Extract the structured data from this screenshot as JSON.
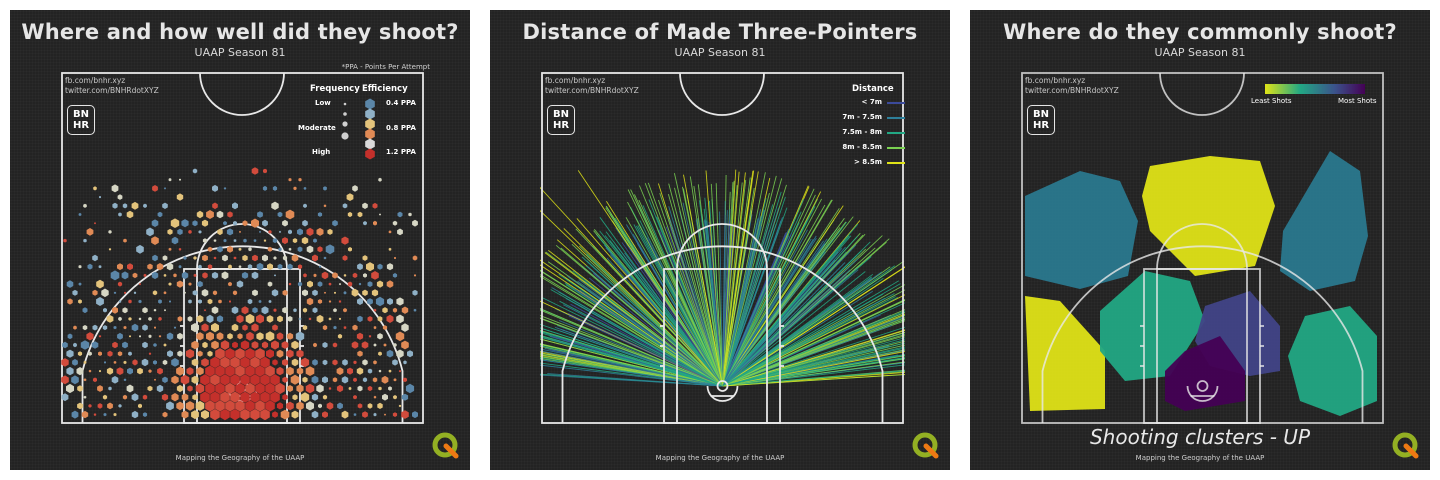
{
  "panels": [
    {
      "title": "Where and how well did they shoot?",
      "subtitle": "UAAP Season 81",
      "note": "*PPA - Points Per Attempt",
      "credit_fb": "fb.com/bnhr.xyz",
      "credit_tw": "twitter.com/BNHRdotXYZ",
      "logo_top": "BN",
      "logo_bottom": "HR",
      "footer": "Mapping the Geography of the UAAP",
      "legend": {
        "frequency_title": "Frequency",
        "efficiency_title": "Efficiency",
        "frequency_levels": [
          "Low",
          "Moderate",
          "High"
        ],
        "efficiency_levels": [
          "0.4 PPA",
          "0.8 PPA",
          "1.2 PPA"
        ],
        "efficiency_colors": [
          "#5b86a8",
          "#e3c37b",
          "#c4302b"
        ]
      }
    },
    {
      "title": "Distance of Made Three-Pointers",
      "subtitle": "UAAP Season 81",
      "credit_fb": "fb.com/bnhr.xyz",
      "credit_tw": "twitter.com/BNHRdotXYZ",
      "logo_top": "BN",
      "logo_bottom": "HR",
      "footer": "Mapping the Geography of the UAAP",
      "legend": {
        "title": "Distance",
        "classes": [
          "< 7m",
          "7m - 7.5m",
          "7.5m - 8m",
          "8m - 8.5m",
          "> 8.5m"
        ],
        "colors": [
          "#3b4a9b",
          "#2d7f9a",
          "#22a884",
          "#7ad151",
          "#dfe317"
        ]
      }
    },
    {
      "title": "Where do they commonly shoot?",
      "subtitle": "UAAP Season 81",
      "credit_fb": "fb.com/bnhr.xyz",
      "credit_tw": "twitter.com/BNHRdotXYZ",
      "logo_top": "BN",
      "logo_bottom": "HR",
      "footer": "Mapping the Geography of the UAAP",
      "clusters_title": "Shooting clusters - UP",
      "legend": {
        "least": "Least Shots",
        "most": "Most Shots",
        "colors": [
          "#dfe317",
          "#7ad151",
          "#22a884",
          "#2a788e",
          "#414487",
          "#440154"
        ]
      }
    }
  ]
}
